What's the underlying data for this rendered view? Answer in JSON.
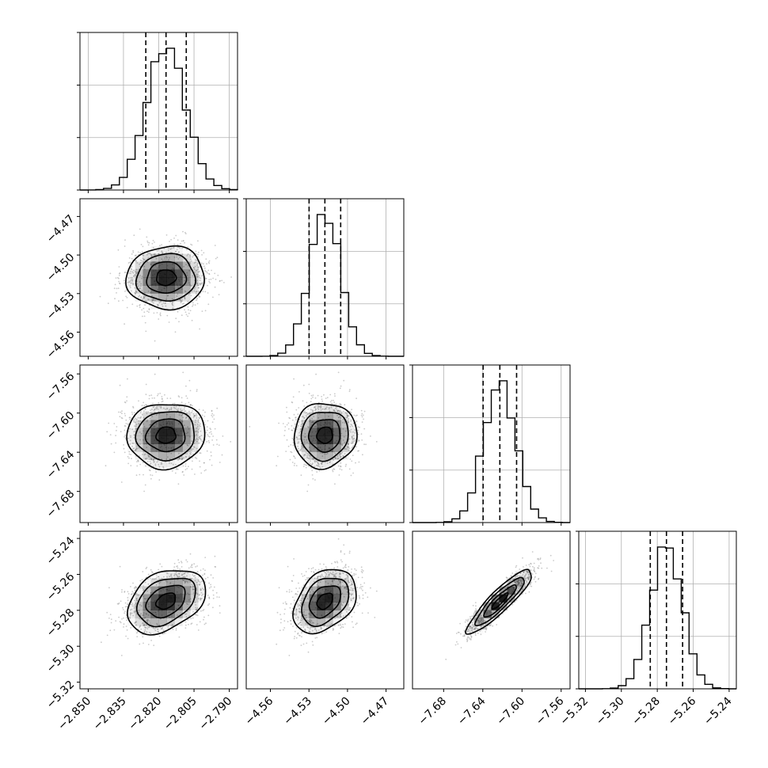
{
  "chart_data": {
    "type": "corner",
    "parameters": [
      {
        "index": 0,
        "range": [
          -2.8535,
          -2.7865
        ],
        "ticks": [
          -2.85,
          -2.835,
          -2.82,
          -2.805,
          -2.79
        ],
        "tick_labels": [
          "−2.850",
          "−2.835",
          "−2.820",
          "−2.805",
          "−2.790"
        ],
        "mean": -2.8169,
        "sigma": 0.0083,
        "quantiles": [
          -2.8255,
          -2.8169,
          -2.8083
        ]
      },
      {
        "index": 1,
        "range": [
          -4.5788,
          -4.4562
        ],
        "ticks": [
          -4.56,
          -4.53,
          -4.5,
          -4.47
        ],
        "tick_labels": [
          "−4.56",
          "−4.53",
          "−4.50",
          "−4.47"
        ],
        "mean": -4.5176,
        "sigma": 0.0122,
        "quantiles": [
          -4.5299,
          -4.5176,
          -4.5053
        ]
      },
      {
        "index": 2,
        "range": [
          -7.7118,
          -7.5509
        ],
        "ticks": [
          -7.68,
          -7.64,
          -7.6,
          -7.56
        ],
        "tick_labels": [
          "−7.68",
          "−7.64",
          "−7.60",
          "−7.56"
        ],
        "mean": -7.6226,
        "sigma": 0.0166,
        "quantiles": [
          -7.6397,
          -7.6226,
          -7.6055
        ]
      },
      {
        "index": 3,
        "range": [
          -5.3237,
          -5.236
        ],
        "ticks": [
          -5.32,
          -5.3,
          -5.28,
          -5.26,
          -5.24
        ],
        "tick_labels": [
          "−5.32",
          "−5.30",
          "−5.28",
          "−5.26",
          "−5.24"
        ],
        "mean": -5.2749,
        "sigma": 0.0089,
        "quantiles": [
          -5.2839,
          -5.2749,
          -5.2659
        ]
      }
    ],
    "correlations": {
      "1-0": 0.03,
      "2-0": 0.05,
      "2-1": 0.05,
      "3-0": 0.35,
      "3-1": 0.35,
      "3-2": 0.9
    },
    "histogram_bins": 20,
    "contour_levels_sigma": [
      0.5,
      1.0,
      1.5,
      2.0
    ],
    "grid": true,
    "title": "",
    "axis_labels": [
      "",
      "",
      "",
      ""
    ]
  },
  "colors": {
    "points": "#8a8a8a",
    "density": "#000000",
    "lines": "#000000",
    "grid": "#b0b0b0"
  }
}
